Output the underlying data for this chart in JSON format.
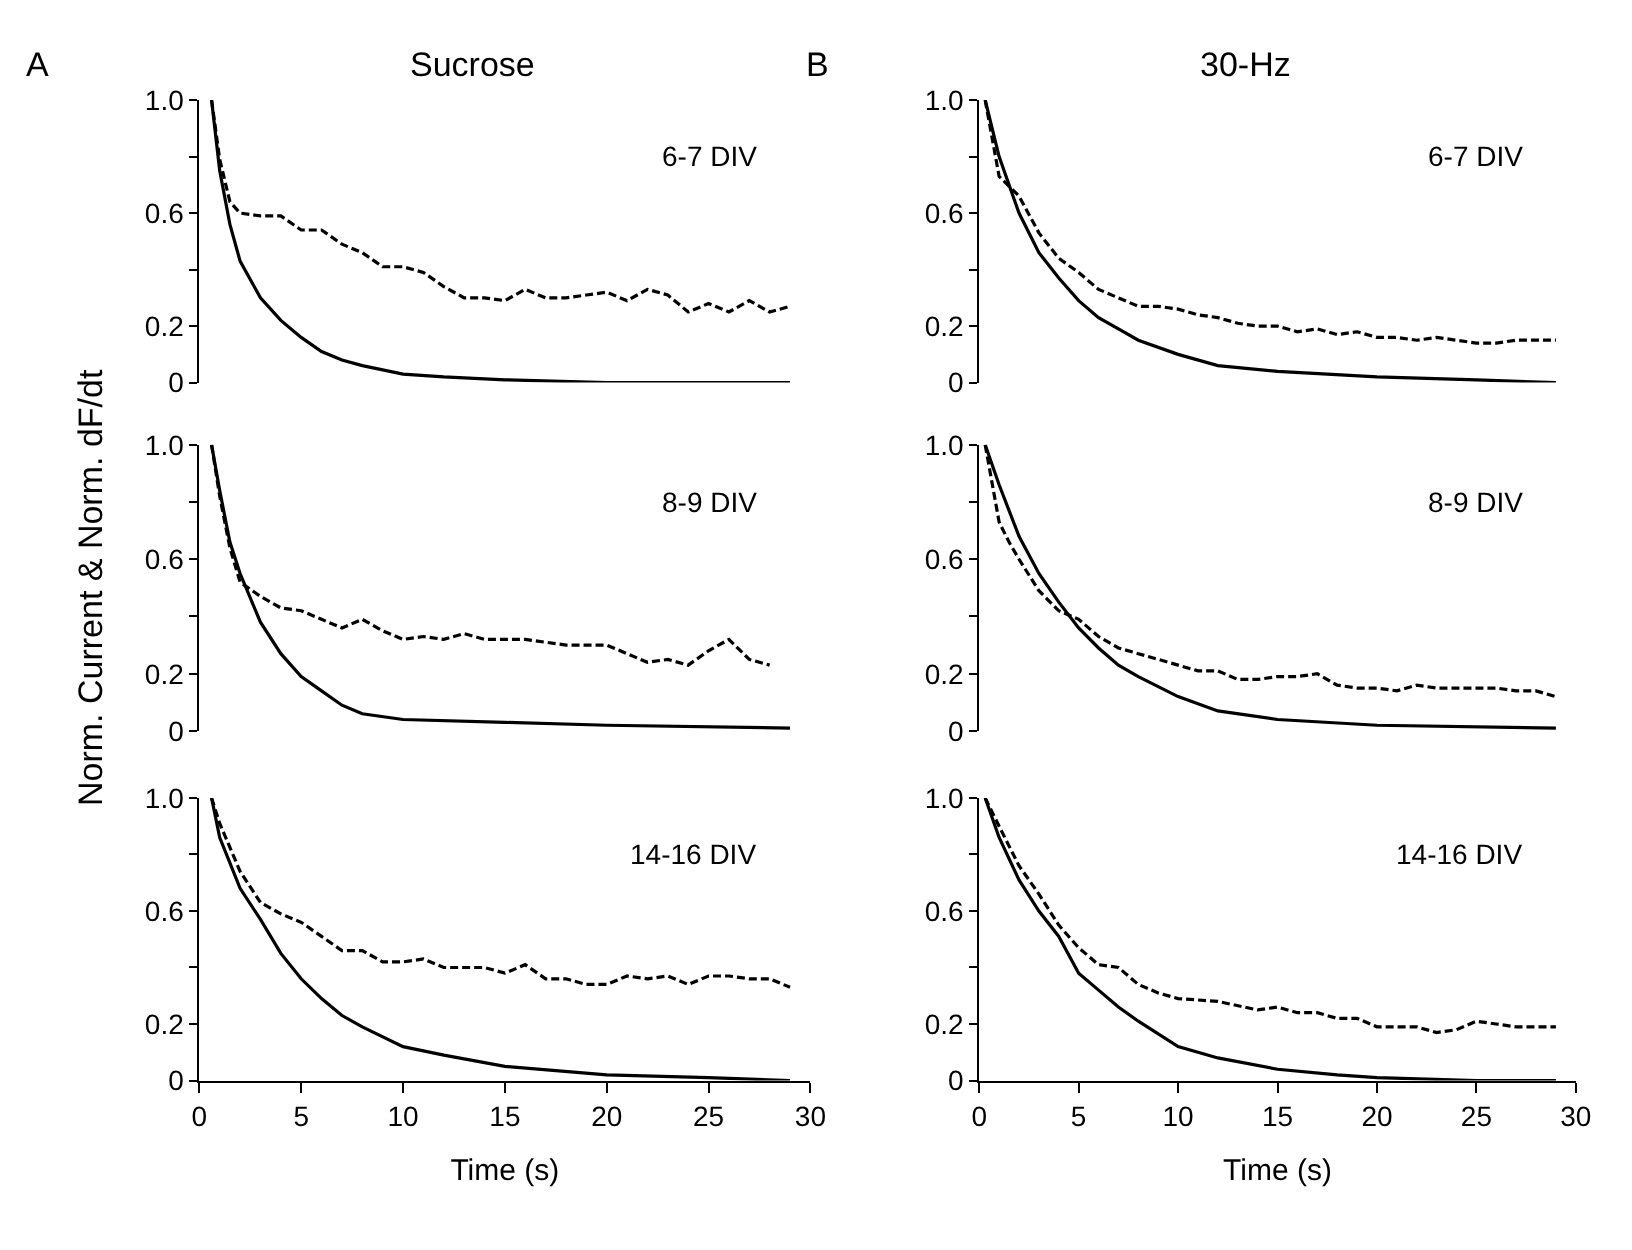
{
  "chart_data": [
    {
      "type": "line",
      "title": "Sucrose",
      "annotations": [
        "A",
        "6-7 DIV"
      ],
      "xlim": [
        0,
        30
      ],
      "xticks": [
        0,
        5,
        10,
        15,
        20,
        25,
        30
      ],
      "ylim": [
        0,
        1.0
      ],
      "yticks": [
        0,
        0.2,
        {
          "value": 0.4,
          "label": null
        },
        0.6,
        {
          "value": 0.8,
          "label": null
        },
        {
          "value": 1.0,
          "label": "1.0"
        }
      ],
      "tick_labels": "y",
      "series": [
        {
          "color": "#000000",
          "line_style": "solid",
          "x": [
            0.6,
            1,
            1.5,
            2,
            3,
            4,
            5,
            6,
            7,
            8,
            10,
            12,
            15,
            20,
            29
          ],
          "values": [
            1.0,
            0.75,
            0.56,
            0.43,
            0.3,
            0.22,
            0.16,
            0.11,
            0.08,
            0.06,
            0.03,
            0.02,
            0.01,
            0,
            0
          ]
        },
        {
          "color": "#000000",
          "line_style": "dashed",
          "x": [
            0.6,
            1,
            1.5,
            2,
            3,
            4,
            5,
            6,
            7,
            8,
            9,
            10,
            11,
            12,
            13,
            14,
            15,
            16,
            17,
            18,
            19,
            20,
            21,
            22,
            23,
            24,
            25,
            26,
            27,
            28,
            29
          ],
          "values": [
            1.0,
            0.79,
            0.64,
            0.6,
            0.59,
            0.59,
            0.54,
            0.54,
            0.49,
            0.46,
            0.41,
            0.41,
            0.39,
            0.34,
            0.3,
            0.3,
            0.29,
            0.33,
            0.3,
            0.3,
            0.31,
            0.32,
            0.29,
            0.33,
            0.31,
            0.25,
            0.28,
            0.25,
            0.29,
            0.25,
            0.27
          ]
        }
      ]
    },
    {
      "type": "line",
      "ylabel": "Norm. Current & Norm. dF/dt",
      "annotations": [
        "8-9 DIV"
      ],
      "xlim": [
        0,
        30
      ],
      "xticks": [
        0,
        5,
        10,
        15,
        20,
        25,
        30
      ],
      "ylim": [
        0,
        1.0
      ],
      "yticks": [
        0,
        0.2,
        {
          "value": 0.4,
          "label": null
        },
        0.6,
        {
          "value": 0.8,
          "label": null
        },
        {
          "value": 1.0,
          "label": "1.0"
        }
      ],
      "tick_labels": "y",
      "series": [
        {
          "color": "#000000",
          "line_style": "solid",
          "x": [
            0.6,
            1,
            1.5,
            2,
            3,
            4,
            5,
            6,
            7,
            8,
            10,
            15,
            20,
            29
          ],
          "values": [
            1.0,
            0.84,
            0.66,
            0.55,
            0.38,
            0.27,
            0.19,
            0.14,
            0.09,
            0.06,
            0.04,
            0.03,
            0.02,
            0.01
          ]
        },
        {
          "color": "#000000",
          "line_style": "dashed",
          "x": [
            0.6,
            1,
            1.5,
            2,
            3,
            4,
            5,
            6,
            7,
            8,
            9,
            10,
            11,
            12,
            13,
            14,
            15,
            16,
            17,
            18,
            19,
            20,
            21,
            22,
            23,
            24,
            25,
            26,
            27,
            28
          ],
          "values": [
            1.0,
            0.82,
            0.64,
            0.52,
            0.47,
            0.43,
            0.42,
            0.39,
            0.36,
            0.39,
            0.35,
            0.32,
            0.33,
            0.32,
            0.34,
            0.32,
            0.32,
            0.32,
            0.31,
            0.3,
            0.3,
            0.3,
            0.27,
            0.24,
            0.25,
            0.23,
            0.28,
            0.32,
            0.25,
            0.23
          ]
        }
      ]
    },
    {
      "type": "line",
      "xlabel": "Time (s)",
      "annotations": [
        "14-16 DIV"
      ],
      "xlim": [
        0,
        30
      ],
      "xticks": [
        0,
        5,
        10,
        15,
        20,
        25,
        30
      ],
      "ylim": [
        0,
        1.0
      ],
      "yticks": [
        0,
        0.2,
        {
          "value": 0.4,
          "label": null
        },
        0.6,
        {
          "value": 0.8,
          "label": null
        },
        {
          "value": 1.0,
          "label": "1.0"
        }
      ],
      "series": [
        {
          "color": "#000000",
          "line_style": "solid",
          "x": [
            0.6,
            1,
            2,
            3,
            4,
            5,
            6,
            7,
            8,
            10,
            12,
            15,
            20,
            25,
            29
          ],
          "values": [
            1.0,
            0.86,
            0.68,
            0.57,
            0.45,
            0.36,
            0.29,
            0.23,
            0.19,
            0.12,
            0.09,
            0.05,
            0.02,
            0.01,
            0
          ]
        },
        {
          "color": "#000000",
          "line_style": "dashed",
          "x": [
            0.6,
            1,
            2,
            3,
            4,
            5,
            6,
            7,
            8,
            9,
            10,
            11,
            12,
            13,
            14,
            15,
            16,
            17,
            18,
            19,
            20,
            21,
            22,
            23,
            24,
            25,
            26,
            27,
            28,
            29
          ],
          "values": [
            1.0,
            0.91,
            0.74,
            0.63,
            0.59,
            0.56,
            0.51,
            0.46,
            0.46,
            0.42,
            0.42,
            0.43,
            0.4,
            0.4,
            0.4,
            0.38,
            0.41,
            0.36,
            0.36,
            0.34,
            0.34,
            0.37,
            0.36,
            0.37,
            0.34,
            0.37,
            0.37,
            0.36,
            0.36,
            0.33
          ]
        }
      ]
    },
    {
      "type": "line",
      "title": "30-Hz",
      "annotations": [
        "B",
        "6-7 DIV"
      ],
      "xlim": [
        0,
        30
      ],
      "xticks": [
        0,
        5,
        10,
        15,
        20,
        25,
        30
      ],
      "ylim": [
        0,
        1.0
      ],
      "yticks": [
        0,
        0.2,
        {
          "value": 0.4,
          "label": null
        },
        0.6,
        {
          "value": 0.8,
          "label": null
        },
        {
          "value": 1.0,
          "label": "1.0"
        }
      ],
      "tick_labels": "y",
      "series": [
        {
          "color": "#000000",
          "line_style": "solid",
          "x": [
            0.3,
            1,
            2,
            3,
            4,
            5,
            6,
            7,
            8,
            10,
            12,
            15,
            20,
            25,
            29
          ],
          "values": [
            1.0,
            0.8,
            0.6,
            0.46,
            0.37,
            0.29,
            0.23,
            0.19,
            0.15,
            0.1,
            0.06,
            0.04,
            0.02,
            0.01,
            0
          ]
        },
        {
          "color": "#000000",
          "line_style": "dashed",
          "x": [
            0.3,
            1,
            2,
            3,
            4,
            5,
            6,
            7,
            8,
            9,
            10,
            11,
            12,
            13,
            14,
            15,
            16,
            17,
            18,
            19,
            20,
            21,
            22,
            23,
            24,
            25,
            26,
            27,
            28,
            29
          ],
          "values": [
            1.0,
            0.73,
            0.66,
            0.53,
            0.44,
            0.39,
            0.33,
            0.3,
            0.27,
            0.27,
            0.26,
            0.24,
            0.23,
            0.21,
            0.2,
            0.2,
            0.18,
            0.19,
            0.17,
            0.18,
            0.16,
            0.16,
            0.15,
            0.16,
            0.15,
            0.14,
            0.14,
            0.15,
            0.15,
            0.15
          ]
        }
      ]
    },
    {
      "type": "line",
      "annotations": [
        "8-9 DIV"
      ],
      "xlim": [
        0,
        30
      ],
      "xticks": [
        0,
        5,
        10,
        15,
        20,
        25,
        30
      ],
      "ylim": [
        0,
        1.0
      ],
      "yticks": [
        0,
        0.2,
        {
          "value": 0.4,
          "label": null
        },
        0.6,
        {
          "value": 0.8,
          "label": null
        },
        {
          "value": 1.0,
          "label": "1.0"
        }
      ],
      "tick_labels": "y",
      "series": [
        {
          "color": "#000000",
          "line_style": "solid",
          "x": [
            0.3,
            1,
            2,
            3,
            4,
            5,
            6,
            7,
            8,
            10,
            12,
            15,
            20,
            29
          ],
          "values": [
            1.0,
            0.86,
            0.68,
            0.55,
            0.45,
            0.36,
            0.29,
            0.23,
            0.19,
            0.12,
            0.07,
            0.04,
            0.02,
            0.01
          ]
        },
        {
          "color": "#000000",
          "line_style": "dashed",
          "x": [
            0.3,
            1,
            1.5,
            2,
            3,
            4,
            5,
            6,
            7,
            8,
            9,
            10,
            11,
            12,
            13,
            14,
            15,
            16,
            17,
            18,
            19,
            20,
            21,
            22,
            23,
            24,
            25,
            26,
            27,
            28,
            29
          ],
          "values": [
            1.0,
            0.73,
            0.66,
            0.6,
            0.49,
            0.42,
            0.39,
            0.33,
            0.29,
            0.27,
            0.25,
            0.23,
            0.21,
            0.21,
            0.18,
            0.18,
            0.19,
            0.19,
            0.2,
            0.16,
            0.15,
            0.15,
            0.14,
            0.16,
            0.15,
            0.15,
            0.15,
            0.15,
            0.14,
            0.14,
            0.12
          ]
        }
      ]
    },
    {
      "type": "line",
      "xlabel": "Time (s)",
      "annotations": [
        "14-16 DIV"
      ],
      "xlim": [
        0,
        30
      ],
      "xticks": [
        0,
        5,
        10,
        15,
        20,
        25,
        30
      ],
      "ylim": [
        0,
        1.0
      ],
      "yticks": [
        0,
        0.2,
        {
          "value": 0.4,
          "label": null
        },
        0.6,
        {
          "value": 0.8,
          "label": null
        },
        {
          "value": 1.0,
          "label": "1.0"
        }
      ],
      "series": [
        {
          "color": "#000000",
          "line_style": "solid",
          "x": [
            0.3,
            1,
            2,
            3,
            4,
            5,
            6,
            7,
            8,
            10,
            12,
            15,
            18,
            20,
            25,
            29
          ],
          "values": [
            1.0,
            0.86,
            0.71,
            0.6,
            0.51,
            0.38,
            0.32,
            0.26,
            0.21,
            0.12,
            0.08,
            0.04,
            0.02,
            0.01,
            0,
            0
          ]
        },
        {
          "color": "#000000",
          "line_style": "dashed",
          "x": [
            0.3,
            1,
            2,
            3,
            4,
            5,
            6,
            7,
            8,
            9,
            10,
            12,
            14,
            15,
            16,
            17,
            18,
            19,
            20,
            21,
            22,
            23,
            24,
            25,
            26,
            27,
            28,
            29
          ],
          "values": [
            1.0,
            0.9,
            0.76,
            0.66,
            0.55,
            0.47,
            0.41,
            0.4,
            0.34,
            0.31,
            0.29,
            0.28,
            0.25,
            0.26,
            0.24,
            0.24,
            0.22,
            0.22,
            0.19,
            0.19,
            0.19,
            0.17,
            0.18,
            0.21,
            0.2,
            0.19,
            0.19,
            0.19
          ]
        }
      ]
    }
  ]
}
